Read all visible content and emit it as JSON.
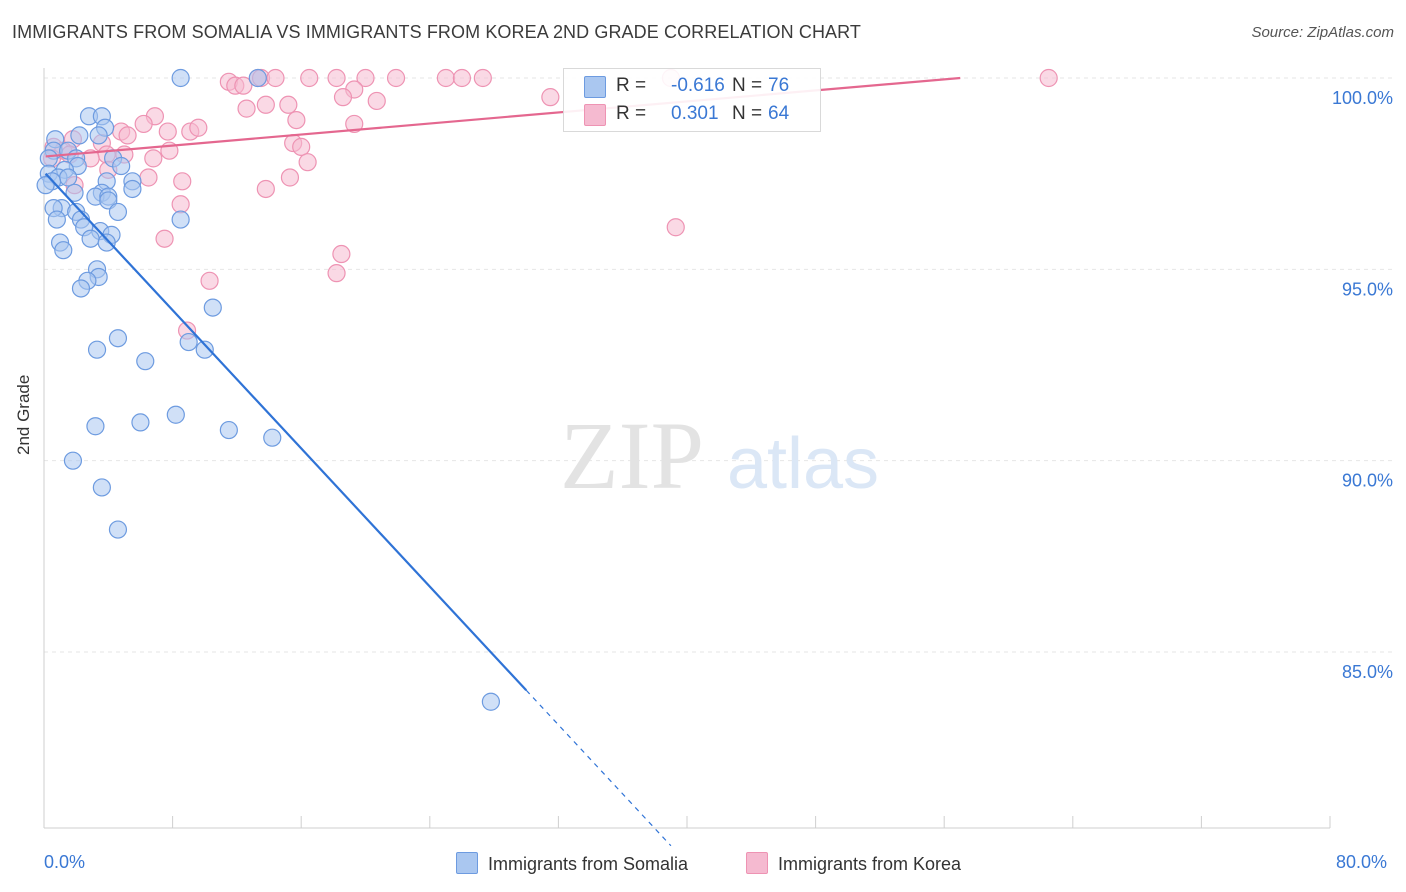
{
  "header": {
    "title": "IMMIGRANTS FROM SOMALIA VS IMMIGRANTS FROM KOREA 2ND GRADE CORRELATION CHART",
    "source": "Source: ZipAtlas.com"
  },
  "watermark": {
    "zip": "ZIP",
    "atlas": "atlas"
  },
  "legend": {
    "rows": [
      {
        "r_label": "R =",
        "r_value": "-0.616",
        "n_label": "N =",
        "n_value": "76"
      },
      {
        "r_label": "R =",
        "r_value": "0.301",
        "n_label": "N =",
        "n_value": "64"
      }
    ]
  },
  "chart_data": {
    "type": "scatter",
    "title": "IMMIGRANTS FROM SOMALIA VS IMMIGRANTS FROM KOREA 2ND GRADE CORRELATION CHART",
    "xlabel": "",
    "ylabel": "2nd Grade",
    "xlim": [
      0,
      80
    ],
    "ylim": [
      80.5,
      101
    ],
    "x_tick_labels": [
      "0.0%",
      "80.0%"
    ],
    "y_ticks": [
      {
        "value": 100,
        "label": "100.0%"
      },
      {
        "value": 95,
        "label": "95.0%"
      },
      {
        "value": 90,
        "label": "90.0%"
      },
      {
        "value": 85,
        "label": "85.0%"
      }
    ],
    "grid": true,
    "legend_position": "bottom",
    "colors": {
      "somalia_fill": "#aac7f0",
      "somalia_stroke": "#6d9be0",
      "somalia_line": "#2f73d6",
      "korea_fill": "#f5bad0",
      "korea_stroke": "#ee93b3",
      "korea_line": "#e4678f",
      "tick_text": "#3a78d4",
      "grid": "#e6e6e6"
    },
    "series": [
      {
        "name": "Immigrants from Somalia",
        "r": -0.616,
        "n": 76,
        "trend": {
          "x0": 0.1,
          "y0": 97.5,
          "x1": 30,
          "y1": 84.0,
          "dash_to_x": 39.0
        },
        "points": [
          [
            8.5,
            100
          ],
          [
            13.3,
            100
          ],
          [
            2.8,
            99.0
          ],
          [
            3.6,
            99.0
          ],
          [
            3.8,
            98.7
          ],
          [
            0.7,
            98.4
          ],
          [
            2.2,
            98.5
          ],
          [
            3.4,
            98.5
          ],
          [
            0.6,
            98.1
          ],
          [
            1.5,
            98.1
          ],
          [
            0.3,
            97.9
          ],
          [
            2.0,
            97.9
          ],
          [
            4.3,
            97.9
          ],
          [
            2.1,
            97.7
          ],
          [
            1.3,
            97.6
          ],
          [
            4.8,
            97.7
          ],
          [
            0.3,
            97.5
          ],
          [
            0.9,
            97.4
          ],
          [
            1.5,
            97.4
          ],
          [
            0.5,
            97.3
          ],
          [
            3.9,
            97.3
          ],
          [
            0.1,
            97.2
          ],
          [
            5.5,
            97.3
          ],
          [
            5.5,
            97.1
          ],
          [
            1.9,
            97.0
          ],
          [
            3.6,
            97.0
          ],
          [
            3.2,
            96.9
          ],
          [
            4.0,
            96.9
          ],
          [
            4.0,
            96.8
          ],
          [
            1.1,
            96.6
          ],
          [
            0.6,
            96.6
          ],
          [
            2.0,
            96.5
          ],
          [
            0.8,
            96.3
          ],
          [
            4.6,
            96.5
          ],
          [
            2.3,
            96.3
          ],
          [
            8.5,
            96.3
          ],
          [
            3.5,
            96.0
          ],
          [
            2.5,
            96.1
          ],
          [
            4.2,
            95.9
          ],
          [
            1.0,
            95.7
          ],
          [
            2.9,
            95.8
          ],
          [
            3.9,
            95.7
          ],
          [
            1.2,
            95.5
          ],
          [
            3.3,
            95.0
          ],
          [
            3.4,
            94.8
          ],
          [
            2.7,
            94.7
          ],
          [
            2.3,
            94.5
          ],
          [
            10.5,
            94.0
          ],
          [
            4.6,
            93.2
          ],
          [
            6.3,
            92.6
          ],
          [
            9.0,
            93.1
          ],
          [
            10.0,
            92.9
          ],
          [
            3.3,
            92.9
          ],
          [
            8.2,
            91.2
          ],
          [
            6.0,
            91.0
          ],
          [
            3.2,
            90.9
          ],
          [
            11.5,
            90.8
          ],
          [
            14.2,
            90.6
          ],
          [
            1.8,
            90.0
          ],
          [
            3.6,
            89.3
          ],
          [
            4.6,
            88.2
          ],
          [
            27.8,
            83.7
          ]
        ]
      },
      {
        "name": "Immigrants from Korea",
        "r": 0.301,
        "n": 64,
        "trend": {
          "x0": 0.1,
          "y0": 97.95,
          "x1": 57,
          "y1": 100.0
        },
        "points": [
          [
            13.3,
            100
          ],
          [
            13.5,
            100
          ],
          [
            14.4,
            100
          ],
          [
            16.5,
            100
          ],
          [
            18.2,
            100
          ],
          [
            20.0,
            100
          ],
          [
            21.9,
            100
          ],
          [
            25.0,
            100
          ],
          [
            26.0,
            100
          ],
          [
            27.3,
            100
          ],
          [
            39.0,
            100
          ],
          [
            62.5,
            100
          ],
          [
            11.5,
            99.9
          ],
          [
            11.9,
            99.8
          ],
          [
            12.4,
            99.8
          ],
          [
            19.3,
            99.7
          ],
          [
            18.6,
            99.5
          ],
          [
            31.5,
            99.5
          ],
          [
            20.7,
            99.4
          ],
          [
            13.8,
            99.3
          ],
          [
            15.2,
            99.3
          ],
          [
            12.6,
            99.2
          ],
          [
            6.9,
            99.0
          ],
          [
            15.7,
            98.9
          ],
          [
            6.2,
            98.8
          ],
          [
            19.3,
            98.8
          ],
          [
            4.8,
            98.6
          ],
          [
            7.7,
            98.6
          ],
          [
            9.1,
            98.6
          ],
          [
            9.6,
            98.7
          ],
          [
            5.2,
            98.5
          ],
          [
            1.8,
            98.4
          ],
          [
            3.6,
            98.3
          ],
          [
            15.5,
            98.3
          ],
          [
            16.0,
            98.2
          ],
          [
            0.6,
            98.2
          ],
          [
            1.2,
            98.1
          ],
          [
            7.8,
            98.1
          ],
          [
            1.6,
            98.0
          ],
          [
            3.9,
            98.0
          ],
          [
            5.0,
            98.0
          ],
          [
            0.5,
            97.9
          ],
          [
            6.8,
            97.9
          ],
          [
            2.9,
            97.9
          ],
          [
            16.4,
            97.8
          ],
          [
            4.0,
            97.6
          ],
          [
            15.3,
            97.4
          ],
          [
            6.5,
            97.4
          ],
          [
            8.6,
            97.3
          ],
          [
            1.9,
            97.2
          ],
          [
            13.8,
            97.1
          ],
          [
            8.5,
            96.7
          ],
          [
            7.5,
            95.8
          ],
          [
            18.5,
            95.4
          ],
          [
            18.2,
            94.9
          ],
          [
            10.3,
            94.7
          ],
          [
            8.9,
            93.4
          ],
          [
            39.3,
            96.1
          ]
        ]
      }
    ]
  }
}
